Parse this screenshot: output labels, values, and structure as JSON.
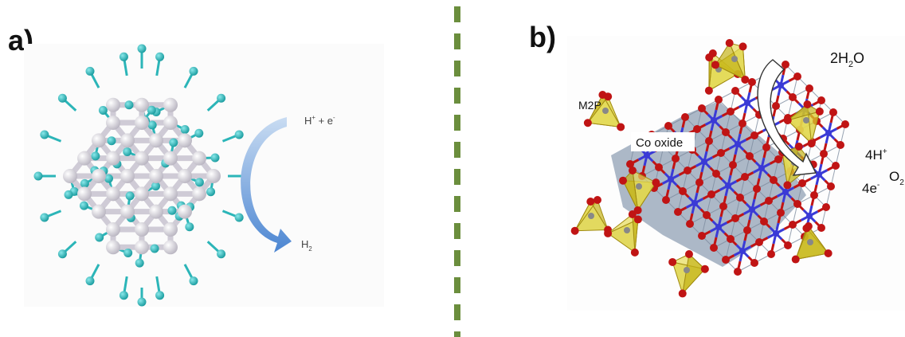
{
  "panel_a": {
    "label": "a)",
    "reactant": {
      "main": "H",
      "sup1": "+",
      "mid": " + e",
      "sup2": "-"
    },
    "product": {
      "main": "H",
      "sub": "2"
    }
  },
  "panel_b": {
    "label": "b)",
    "m2p_label": "M2P",
    "co_oxide_label": "Co oxide",
    "water": {
      "pre": "2H",
      "sub": "2",
      "post": "O"
    },
    "protons": {
      "main": "4H",
      "sup": "+"
    },
    "electrons": {
      "main": "4e",
      "sup": "-"
    },
    "oxygen": {
      "main": "O",
      "sub": "2"
    }
  },
  "colors": {
    "divider": "#6b8e3d",
    "metal_atom": "#d3d0d8",
    "hydrogen_atom": "#2bb5b8",
    "arrow_blue": "#5b8fd0",
    "cobalt": "#3a3ad6",
    "oxygen_atom": "#c01414",
    "octahedra": "#9aa8b8",
    "phosphate": "#d8cc2a"
  }
}
